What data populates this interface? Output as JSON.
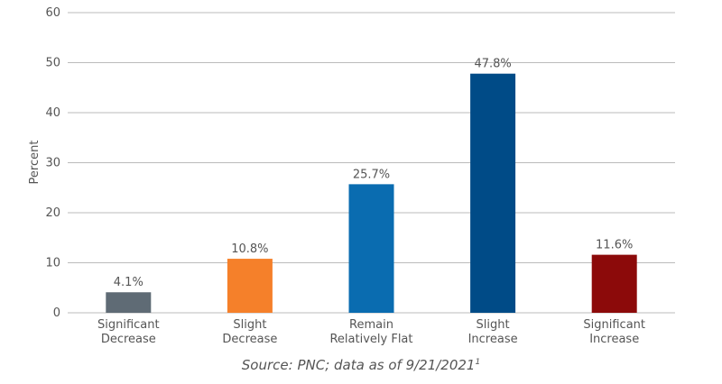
{
  "chart_data": {
    "type": "bar",
    "ylabel": "Percent",
    "categories": [
      "Significant\nDecrease",
      "Slight\nDecrease",
      "Remain\nRelatively Flat",
      "Slight\nIncrease",
      "Significant\nIncrease"
    ],
    "values": [
      4.1,
      10.8,
      25.7,
      47.8,
      11.6
    ],
    "value_labels": [
      "4.1%",
      "10.8%",
      "25.7%",
      "47.8%",
      "11.6%"
    ],
    "colors": [
      "#5f6b75",
      "#f5802a",
      "#0a6cb0",
      "#004b87",
      "#8c0a0a"
    ],
    "ylim": [
      0,
      60
    ],
    "yticks": [
      0,
      10,
      20,
      30,
      40,
      50,
      60
    ],
    "grid": true,
    "source": "Source: PNC; data as of 9/21/2021",
    "source_note": "1"
  }
}
